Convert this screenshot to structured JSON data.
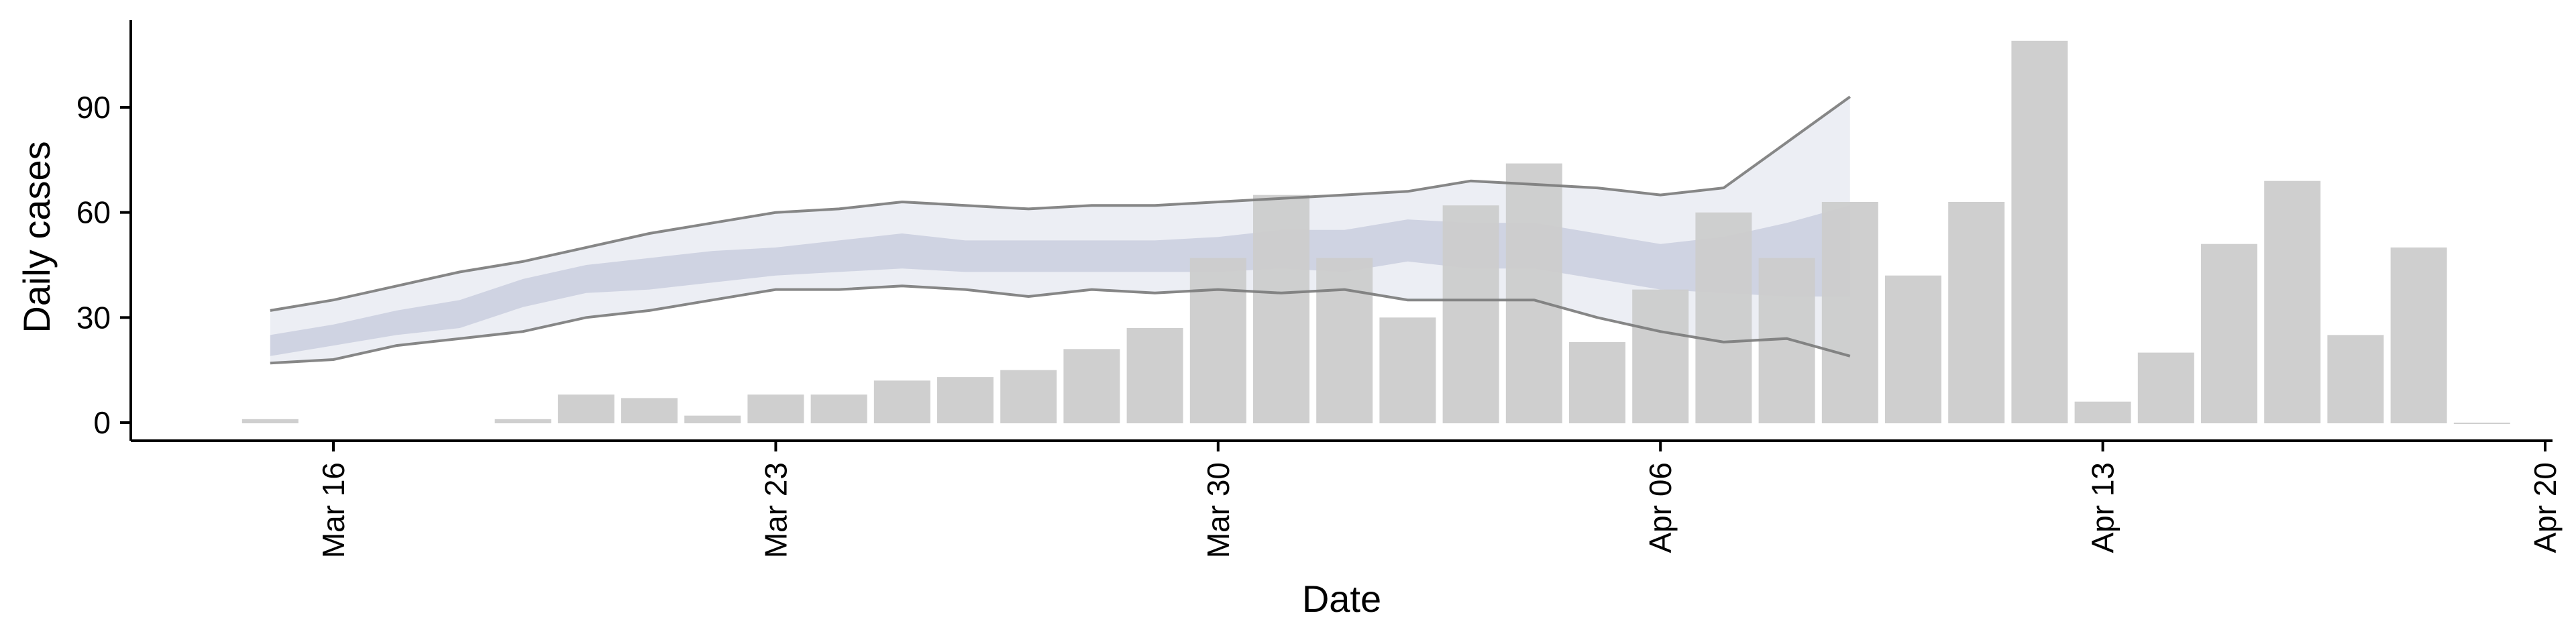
{
  "chart_data": {
    "type": "bar",
    "xlabel": "Date",
    "ylabel": "Daily cases",
    "xlim": [
      "2020-03-12",
      "2020-04-20"
    ],
    "ylim": [
      -8,
      114
    ],
    "x_tick_labels": [
      {
        "date": "2020-03-16",
        "label": "Mar 16"
      },
      {
        "date": "2020-03-23",
        "label": "Mar 23"
      },
      {
        "date": "2020-03-30",
        "label": "Mar 30"
      },
      {
        "date": "2020-04-06",
        "label": "Apr 06"
      },
      {
        "date": "2020-04-13",
        "label": "Apr 13"
      },
      {
        "date": "2020-04-20",
        "label": "Apr 20"
      }
    ],
    "y_ticks": [
      0,
      30,
      60,
      90
    ],
    "grid": false,
    "bars": {
      "dates": [
        "2020-03-15",
        "2020-03-19",
        "2020-03-20",
        "2020-03-21",
        "2020-03-22",
        "2020-03-23",
        "2020-03-24",
        "2020-03-25",
        "2020-03-26",
        "2020-03-27",
        "2020-03-28",
        "2020-03-29",
        "2020-03-30",
        "2020-03-31",
        "2020-04-01",
        "2020-04-02",
        "2020-04-03",
        "2020-04-04",
        "2020-04-05",
        "2020-04-06",
        "2020-04-07",
        "2020-04-08",
        "2020-04-09",
        "2020-04-10",
        "2020-04-11",
        "2020-04-12",
        "2020-04-13",
        "2020-04-14",
        "2020-04-15",
        "2020-04-16",
        "2020-04-17",
        "2020-04-18",
        "2020-04-19"
      ],
      "values": [
        1,
        1,
        8,
        7,
        2,
        8,
        8,
        12,
        13,
        15,
        21,
        27,
        47,
        65,
        47,
        30,
        62,
        74,
        23,
        38,
        60,
        47,
        63,
        42,
        63,
        109,
        6,
        20,
        51,
        69,
        25,
        50,
        0
      ],
      "color": "#cccccc"
    },
    "estimate": {
      "dates": [
        "2020-03-15",
        "2020-03-16",
        "2020-03-17",
        "2020-03-18",
        "2020-03-19",
        "2020-03-20",
        "2020-03-21",
        "2020-03-22",
        "2020-03-23",
        "2020-03-24",
        "2020-03-25",
        "2020-03-26",
        "2020-03-27",
        "2020-03-28",
        "2020-03-29",
        "2020-03-30",
        "2020-03-31",
        "2020-04-01",
        "2020-04-02",
        "2020-04-03",
        "2020-04-04",
        "2020-04-05",
        "2020-04-06",
        "2020-04-07",
        "2020-04-08",
        "2020-04-09"
      ],
      "outer_upper": [
        32,
        35,
        39,
        43,
        46,
        50,
        54,
        57,
        60,
        61,
        63,
        62,
        61,
        62,
        62,
        63,
        64,
        65,
        66,
        69,
        68,
        67,
        65,
        67,
        80,
        93
      ],
      "outer_lower": [
        17,
        18,
        22,
        24,
        26,
        30,
        32,
        35,
        38,
        38,
        39,
        38,
        36,
        38,
        37,
        38,
        37,
        38,
        35,
        35,
        35,
        30,
        26,
        23,
        24,
        19
      ],
      "inner_upper": [
        25,
        28,
        32,
        35,
        41,
        45,
        47,
        49,
        50,
        52,
        54,
        52,
        52,
        52,
        52,
        53,
        55,
        55,
        58,
        57,
        57,
        54,
        51,
        53,
        57,
        62
      ],
      "inner_lower": [
        19,
        22,
        25,
        27,
        33,
        37,
        38,
        40,
        42,
        43,
        44,
        43,
        43,
        43,
        43,
        43,
        44,
        43,
        46,
        44,
        44,
        41,
        38,
        37,
        36,
        36
      ],
      "lines_color": "#7a7a7a",
      "outer_band_color": "#dfe2ed",
      "inner_band_color": "#c5cadc"
    }
  }
}
